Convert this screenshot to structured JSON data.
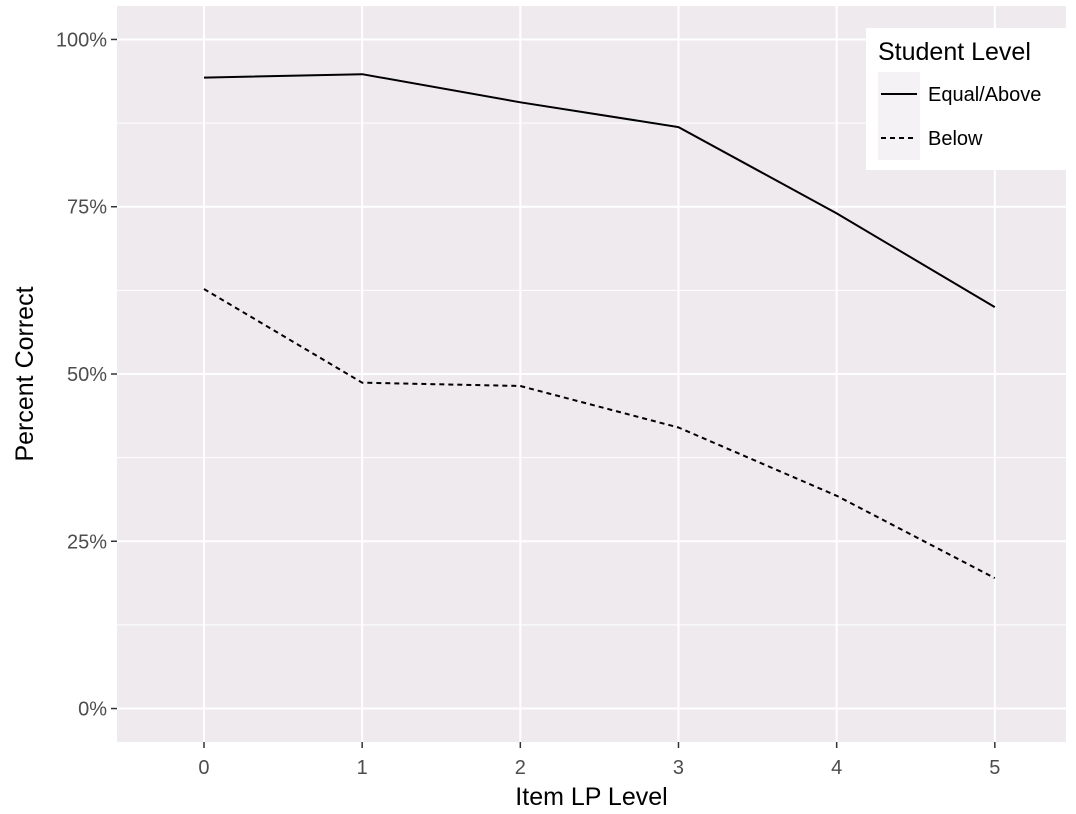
{
  "chart_data": {
    "type": "line",
    "title": "",
    "xlabel": "Item LP Level",
    "ylabel": "Percent Correct",
    "x": [
      0,
      1,
      2,
      3,
      4,
      5
    ],
    "x_tick_labels": [
      "0",
      "1",
      "2",
      "3",
      "4",
      "5"
    ],
    "xlim": [
      -0.55,
      5.45
    ],
    "y_ticks": [
      0,
      0.25,
      0.5,
      0.75,
      1.0
    ],
    "y_tick_labels": [
      "0%",
      "25%",
      "50%",
      "75%",
      "100%"
    ],
    "ylim": [
      -0.05,
      1.05
    ],
    "grid": true,
    "legend": {
      "title": "Student Level",
      "placement": "top-right (inside plot)"
    },
    "series": [
      {
        "name": "Equal/Above",
        "line_style": "solid",
        "color": "#000000",
        "values": [
          0.943,
          0.948,
          0.906,
          0.869,
          0.74,
          0.6
        ]
      },
      {
        "name": "Below",
        "line_style": "dashed",
        "color": "#000000",
        "values": [
          0.627,
          0.487,
          0.482,
          0.42,
          0.318,
          0.195
        ]
      }
    ],
    "colors": {
      "panel_background": "#EEEAEE",
      "grid_major": "#FFFFFF",
      "axis_text": "#4D4D4D",
      "axis_title": "#000000"
    }
  }
}
